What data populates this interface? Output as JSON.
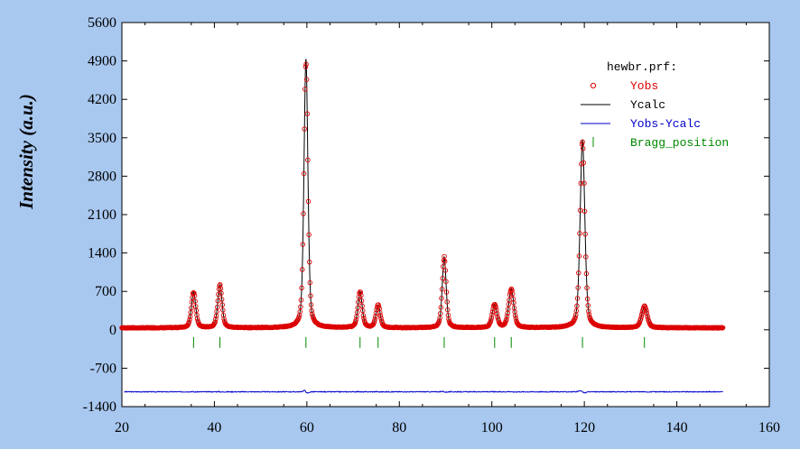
{
  "chart_data": {
    "type": "line",
    "title": "",
    "xlabel": "",
    "ylabel": "Intensity (a.u.)",
    "xlim": [
      20,
      160
    ],
    "ylim": [
      -1400,
      5600
    ],
    "x_ticks": [
      20,
      40,
      60,
      80,
      100,
      120,
      140,
      160
    ],
    "y_ticks": [
      5600,
      4900,
      4200,
      3500,
      2800,
      2100,
      1400,
      700,
      0,
      -700,
      -1400
    ],
    "legend": {
      "title": "hewbr.prf:",
      "placement": "top-right",
      "entries": [
        {
          "name": "Yobs",
          "color": "#dd0000",
          "marker": "circle"
        },
        {
          "name": "Ycalc",
          "color": "#000000",
          "marker": "line"
        },
        {
          "name": "Yobs-Ycalc",
          "color": "#0000cc",
          "marker": "line"
        },
        {
          "name": "Bragg_position",
          "color": "#008800",
          "marker": "tick"
        }
      ]
    },
    "x_range": [
      20,
      150
    ],
    "baseline": 35,
    "peaks": [
      {
        "x": 35.5,
        "height": 650,
        "width": 0.55
      },
      {
        "x": 41.2,
        "height": 780,
        "width": 0.55
      },
      {
        "x": 59.8,
        "height": 4900,
        "width": 0.5
      },
      {
        "x": 71.5,
        "height": 650,
        "width": 0.55
      },
      {
        "x": 75.4,
        "height": 410,
        "width": 0.55
      },
      {
        "x": 89.7,
        "height": 1290,
        "width": 0.5
      },
      {
        "x": 100.6,
        "height": 420,
        "width": 0.6
      },
      {
        "x": 104.2,
        "height": 700,
        "width": 0.65
      },
      {
        "x": 119.6,
        "height": 3420,
        "width": 0.6
      },
      {
        "x": 133.0,
        "height": 390,
        "width": 0.7
      }
    ],
    "bragg_positions": [
      35.5,
      41.2,
      59.8,
      71.5,
      75.4,
      89.7,
      100.6,
      104.2,
      119.6,
      133.0
    ],
    "bragg_tick_y": -230,
    "difference_offset": -1130,
    "colors": {
      "background": "#a8c8f0",
      "plot_bg": "#ffffff",
      "obs": "#dd0000",
      "calc": "#000000",
      "diff": "#0000cc",
      "bragg": "#008800"
    }
  }
}
